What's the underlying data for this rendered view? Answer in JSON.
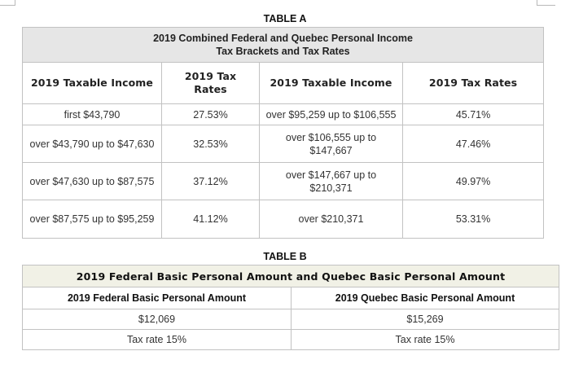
{
  "table_a": {
    "caption": "TABLE A",
    "heading_line1": "2019 Combined Federal and Quebec Personal Income",
    "heading_line2": "Tax Brackets and Tax Rates",
    "columns": [
      "2019 Taxable Income",
      "2019 Tax Rates",
      "2019 Taxable Income",
      "2019 Tax Rates"
    ],
    "rows": [
      [
        "first $43,790",
        "27.53%",
        "over $95,259 up to $106,555",
        "45.71%"
      ],
      [
        "over $43,790 up to $47,630",
        "32.53%",
        "over $106,555 up to $147,667",
        "47.46%"
      ],
      [
        "over $47,630 up to $87,575",
        "37.12%",
        "over $147,667 up to $210,371",
        "49.97%"
      ],
      [
        "over $87,575 up to $95,259",
        "41.12%",
        "over $210,371",
        "53.31%"
      ]
    ]
  },
  "table_b": {
    "caption": "TABLE B",
    "heading": "2019 Federal Basic Personal Amount and Quebec Basic Personal Amount",
    "columns": [
      "2019 Federal Basic Personal Amount",
      "2019 Quebec Basic Personal Amount"
    ],
    "rows": [
      [
        "$12,069",
        "$15,269"
      ],
      [
        "Tax rate 15%",
        "Tax rate 15%"
      ]
    ]
  }
}
